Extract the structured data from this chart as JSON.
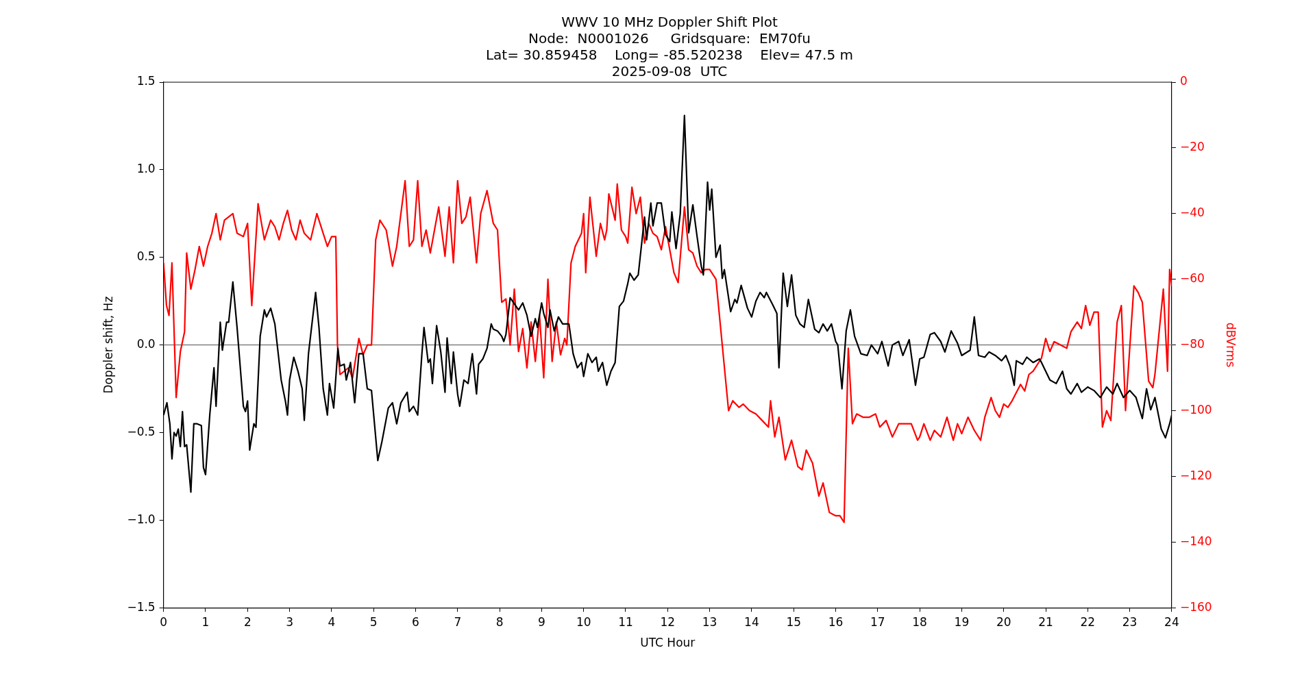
{
  "chart_data": {
    "type": "line",
    "title": "WWV 10 MHz Doppler Shift Plot\nNode:  N0001026     Gridsquare:  EM70fu\nLat= 30.859458    Long= -85.520238    Elev= 47.5 m\n2025-09-08  UTC",
    "xlabel": "UTC Hour",
    "ylabel": "Doppler shift, Hz",
    "y2label": "dBVrms",
    "xlim": [
      0,
      24
    ],
    "xticks": [
      0,
      1,
      2,
      3,
      4,
      5,
      6,
      7,
      8,
      9,
      10,
      11,
      12,
      13,
      14,
      15,
      16,
      17,
      18,
      19,
      20,
      21,
      22,
      23,
      24
    ],
    "ylim": [
      -1.5,
      1.5
    ],
    "yticks": [
      {
        "value": -1.5,
        "label": "−1.5"
      },
      {
        "value": -1,
        "label": "−1.0"
      },
      {
        "value": -0.5,
        "label": "−0.5"
      },
      {
        "value": 0,
        "label": "0.0"
      },
      {
        "value": 0.5,
        "label": "0.5"
      },
      {
        "value": 1,
        "label": "1.0"
      },
      {
        "value": 1.5,
        "label": "1.5"
      }
    ],
    "y2lim": [
      -160,
      0
    ],
    "y2ticks": [
      {
        "value": -160,
        "label": "−160"
      },
      {
        "value": -140,
        "label": "−140"
      },
      {
        "value": -120,
        "label": "−120"
      },
      {
        "value": -100,
        "label": "−100"
      },
      {
        "value": -80,
        "label": "−80"
      },
      {
        "value": -60,
        "label": "−60"
      },
      {
        "value": -40,
        "label": "−40"
      },
      {
        "value": -20,
        "label": "−20"
      },
      0
    ],
    "grid": false,
    "legend": false,
    "marker": "none",
    "line_style": "solid",
    "ref_lines": [
      {
        "axis": "y",
        "value": 0,
        "color": "#808080"
      }
    ],
    "series": [
      {
        "color": "#000000",
        "x": [
          0,
          0.08,
          0.15,
          0.2,
          0.25,
          0.3,
          0.35,
          0.4,
          0.45,
          0.5,
          0.55,
          0.65,
          0.72,
          0.8,
          0.9,
          0.95,
          1,
          1.1,
          1.2,
          1.25,
          1.35,
          1.4,
          1.5,
          1.55,
          1.65,
          1.75,
          1.9,
          1.95,
          2,
          2.05,
          2.15,
          2.2,
          2.3,
          2.4,
          2.45,
          2.55,
          2.65,
          2.8,
          2.9,
          2.95,
          3,
          3.1,
          3.2,
          3.3,
          3.35,
          3.45,
          3.62,
          3.7,
          3.8,
          3.9,
          3.95,
          4.05,
          4.15,
          4.2,
          4.3,
          4.35,
          4.45,
          4.55,
          4.65,
          4.75,
          4.85,
          4.95,
          5.1,
          5.2,
          5.35,
          5.45,
          5.55,
          5.65,
          5.8,
          5.85,
          5.95,
          6.05,
          6.15,
          6.2,
          6.3,
          6.35,
          6.4,
          6.5,
          6.6,
          6.7,
          6.75,
          6.85,
          6.9,
          7,
          7.05,
          7.15,
          7.25,
          7.35,
          7.45,
          7.5,
          7.6,
          7.7,
          7.8,
          7.85,
          7.95,
          8.05,
          8.1,
          8.15,
          8.25,
          8.45,
          8.55,
          8.65,
          8.75,
          8.85,
          8.9,
          9,
          9.05,
          9.15,
          9.2,
          9.3,
          9.4,
          9.5,
          9.65,
          9.75,
          9.85,
          9.95,
          10,
          10.1,
          10.2,
          10.3,
          10.35,
          10.45,
          10.55,
          10.65,
          10.75,
          10.85,
          10.95,
          11.05,
          11.1,
          11.2,
          11.3,
          11.45,
          11.5,
          11.6,
          11.65,
          11.75,
          11.85,
          11.95,
          12.05,
          12.1,
          12.2,
          12.3,
          12.4,
          12.5,
          12.6,
          12.7,
          12.8,
          12.85,
          12.95,
          13,
          13.05,
          13.15,
          13.25,
          13.3,
          13.35,
          13.5,
          13.6,
          13.65,
          13.75,
          13.9,
          14,
          14.1,
          14.2,
          14.3,
          14.35,
          14.5,
          14.6,
          14.65,
          14.75,
          14.85,
          14.95,
          15.05,
          15.15,
          15.25,
          15.35,
          15.5,
          15.6,
          15.7,
          15.8,
          15.9,
          16,
          16.05,
          16.15,
          16.25,
          16.35,
          16.45,
          16.6,
          16.75,
          16.85,
          17,
          17.1,
          17.25,
          17.35,
          17.5,
          17.6,
          17.75,
          17.9,
          18,
          18.1,
          18.25,
          18.35,
          18.5,
          18.6,
          18.75,
          18.9,
          19,
          19.2,
          19.3,
          19.4,
          19.55,
          19.65,
          19.8,
          19.95,
          20.05,
          20.15,
          20.25,
          20.3,
          20.45,
          20.55,
          20.7,
          20.85,
          20.9,
          21,
          21.1,
          21.25,
          21.4,
          21.5,
          21.6,
          21.75,
          21.85,
          22,
          22.15,
          22.3,
          22.45,
          22.6,
          22.7,
          22.85,
          23,
          23.15,
          23.3,
          23.4,
          23.5,
          23.6,
          23.75,
          23.85,
          23.95,
          24
        ],
        "values": [
          -0.4,
          -0.33,
          -0.45,
          -0.65,
          -0.5,
          -0.52,
          -0.48,
          -0.58,
          -0.38,
          -0.58,
          -0.57,
          -0.84,
          -0.45,
          -0.45,
          -0.46,
          -0.7,
          -0.74,
          -0.4,
          -0.13,
          -0.35,
          0.13,
          -0.03,
          0.13,
          0.13,
          0.36,
          0.1,
          -0.35,
          -0.38,
          -0.32,
          -0.6,
          -0.45,
          -0.47,
          0.05,
          0.2,
          0.16,
          0.21,
          0.12,
          -0.2,
          -0.32,
          -0.4,
          -0.2,
          -0.07,
          -0.15,
          -0.25,
          -0.43,
          -0.05,
          0.3,
          0.1,
          -0.25,
          -0.4,
          -0.22,
          -0.36,
          -0.02,
          -0.12,
          -0.11,
          -0.2,
          -0.1,
          -0.33,
          -0.05,
          -0.05,
          -0.25,
          -0.26,
          -0.66,
          -0.55,
          -0.36,
          -0.33,
          -0.45,
          -0.33,
          -0.27,
          -0.38,
          -0.35,
          -0.4,
          -0.05,
          0.1,
          -0.1,
          -0.08,
          -0.22,
          0.11,
          -0.04,
          -0.27,
          0.04,
          -0.22,
          -0.04,
          -0.28,
          -0.35,
          -0.2,
          -0.22,
          -0.05,
          -0.28,
          -0.11,
          -0.08,
          -0.02,
          0.12,
          0.09,
          0.08,
          0.05,
          0.02,
          0.06,
          0.27,
          0.2,
          0.24,
          0.17,
          0.05,
          0.15,
          0.1,
          0.24,
          0.18,
          0.1,
          0.2,
          0.08,
          0.16,
          0.12,
          0.12,
          -0.05,
          -0.13,
          -0.1,
          -0.18,
          -0.05,
          -0.1,
          -0.07,
          -0.15,
          -0.1,
          -0.23,
          -0.15,
          -0.1,
          0.22,
          0.25,
          0.35,
          0.41,
          0.37,
          0.4,
          0.73,
          0.6,
          0.81,
          0.68,
          0.81,
          0.81,
          0.63,
          0.59,
          0.76,
          0.55,
          0.75,
          1.31,
          0.64,
          0.8,
          0.62,
          0.45,
          0.4,
          0.93,
          0.77,
          0.89,
          0.5,
          0.57,
          0.38,
          0.43,
          0.19,
          0.26,
          0.24,
          0.34,
          0.21,
          0.16,
          0.25,
          0.3,
          0.27,
          0.3,
          0.23,
          0.18,
          -0.13,
          0.41,
          0.22,
          0.4,
          0.17,
          0.12,
          0.1,
          0.26,
          0.09,
          0.07,
          0.12,
          0.08,
          0.12,
          0.02,
          0,
          -0.25,
          0.08,
          0.2,
          0.05,
          -0.05,
          -0.06,
          0,
          -0.05,
          0.02,
          -0.12,
          0,
          0.02,
          -0.06,
          0.03,
          -0.23,
          -0.08,
          -0.07,
          0.06,
          0.07,
          0.02,
          -0.04,
          0.08,
          0.01,
          -0.06,
          -0.03,
          0.16,
          -0.06,
          -0.07,
          -0.04,
          -0.06,
          -0.09,
          -0.06,
          -0.12,
          -0.23,
          -0.09,
          -0.11,
          -0.07,
          -0.1,
          -0.08,
          -0.1,
          -0.15,
          -0.2,
          -0.22,
          -0.15,
          -0.25,
          -0.28,
          -0.22,
          -0.27,
          -0.24,
          -0.26,
          -0.3,
          -0.24,
          -0.28,
          -0.22,
          -0.3,
          -0.26,
          -0.3,
          -0.42,
          -0.25,
          -0.37,
          -0.3,
          -0.48,
          -0.53,
          -0.45,
          -0.4
        ]
      },
      {
        "color": "#ff0000",
        "axis": "y2",
        "x": [
          0,
          0.07,
          0.13,
          0.2,
          0.3,
          0.4,
          0.5,
          0.55,
          0.65,
          0.75,
          0.85,
          0.95,
          1.05,
          1.15,
          1.25,
          1.35,
          1.45,
          1.55,
          1.65,
          1.75,
          1.9,
          2,
          2.1,
          2.25,
          2.4,
          2.55,
          2.65,
          2.75,
          2.85,
          2.95,
          3.05,
          3.15,
          3.25,
          3.35,
          3.5,
          3.65,
          3.8,
          3.9,
          4,
          4.1,
          4.14,
          4.2,
          4.4,
          4.5,
          4.65,
          4.75,
          4.85,
          4.95,
          5.05,
          5.15,
          5.3,
          5.45,
          5.55,
          5.75,
          5.85,
          5.95,
          6.05,
          6.15,
          6.25,
          6.35,
          6.45,
          6.55,
          6.7,
          6.8,
          6.9,
          7,
          7.1,
          7.2,
          7.3,
          7.45,
          7.55,
          7.7,
          7.85,
          7.95,
          8.05,
          8.15,
          8.25,
          8.35,
          8.45,
          8.55,
          8.65,
          8.75,
          8.85,
          8.95,
          9.05,
          9.15,
          9.25,
          9.35,
          9.45,
          9.55,
          9.6,
          9.7,
          9.8,
          9.95,
          10,
          10.05,
          10.15,
          10.3,
          10.4,
          10.5,
          10.55,
          10.6,
          10.75,
          10.8,
          10.9,
          11,
          11.05,
          11.15,
          11.25,
          11.35,
          11.45,
          11.55,
          11.65,
          11.75,
          11.85,
          11.95,
          12.05,
          12.15,
          12.25,
          12.4,
          12.5,
          12.6,
          12.7,
          12.8,
          12.9,
          13,
          13.15,
          13.3,
          13.45,
          13.55,
          13.7,
          13.8,
          13.95,
          14.1,
          14.25,
          14.4,
          14.45,
          14.55,
          14.65,
          14.8,
          14.95,
          15.1,
          15.2,
          15.3,
          15.45,
          15.6,
          15.7,
          15.85,
          16,
          16.1,
          16.2,
          16.3,
          16.4,
          16.5,
          16.65,
          16.8,
          16.95,
          17.05,
          17.2,
          17.35,
          17.5,
          17.65,
          17.8,
          17.95,
          18,
          18.1,
          18.25,
          18.35,
          18.5,
          18.65,
          18.8,
          18.9,
          19,
          19.15,
          19.3,
          19.45,
          19.55,
          19.7,
          19.8,
          19.9,
          20,
          20.1,
          20.2,
          20.4,
          20.5,
          20.6,
          20.7,
          20.9,
          21,
          21.1,
          21.2,
          21.35,
          21.5,
          21.6,
          21.75,
          21.85,
          21.95,
          22.05,
          22.15,
          22.25,
          22.35,
          22.45,
          22.55,
          22.7,
          22.8,
          22.9,
          23.1,
          23.2,
          23.3,
          23.45,
          23.55,
          23.6,
          23.8,
          23.9,
          23.95,
          24
        ],
        "values": [
          -55,
          -68,
          -71,
          -55,
          -96,
          -82,
          -76,
          -52,
          -63,
          -57,
          -50,
          -56,
          -50,
          -46,
          -40,
          -48,
          -42,
          -41,
          -40,
          -46,
          -47,
          -43,
          -68,
          -37,
          -48,
          -42,
          -44,
          -48,
          -43,
          -39,
          -45,
          -48,
          -42,
          -46,
          -48,
          -40,
          -46,
          -50,
          -47,
          -47,
          -80,
          -89,
          -87,
          -90,
          -78,
          -83,
          -80,
          -80,
          -48,
          -42,
          -45,
          -56,
          -50,
          -30,
          -50,
          -48,
          -30,
          -50,
          -45,
          -52,
          -45,
          -38,
          -53,
          -38,
          -55,
          -30,
          -43,
          -41,
          -35,
          -55,
          -40,
          -33,
          -43,
          -45,
          -67,
          -66,
          -80,
          -63,
          -82,
          -75,
          -87,
          -73,
          -85,
          -71,
          -90,
          -60,
          -85,
          -73,
          -83,
          -78,
          -80,
          -55,
          -50,
          -46,
          -40,
          -58,
          -35,
          -53,
          -43,
          -48,
          -45,
          -34,
          -42,
          -31,
          -45,
          -47,
          -49,
          -32,
          -40,
          -35,
          -49,
          -43,
          -46,
          -47,
          -51,
          -44,
          -51,
          -58,
          -61,
          -38,
          -51,
          -52,
          -56,
          -58,
          -57,
          -57,
          -60,
          -80,
          -100,
          -97,
          -99,
          -98,
          -100,
          -101,
          -103,
          -105,
          -97,
          -108,
          -102,
          -115,
          -109,
          -117,
          -118,
          -112,
          -116,
          -126,
          -122,
          -131,
          -132,
          -132,
          -134,
          -81,
          -104,
          -101,
          -102,
          -102,
          -101,
          -105,
          -103,
          -108,
          -104,
          -104,
          -104,
          -109,
          -108,
          -104,
          -109,
          -106,
          -108,
          -102,
          -109,
          -104,
          -107,
          -102,
          -106,
          -109,
          -102,
          -96,
          -100,
          -102,
          -98,
          -99,
          -97,
          -92,
          -94,
          -89,
          -88,
          -84,
          -78,
          -82,
          -79,
          -80,
          -81,
          -76,
          -73,
          -75,
          -68,
          -74,
          -70,
          -70,
          -105,
          -100,
          -103,
          -73,
          -68,
          -100,
          -62,
          -64,
          -67,
          -91,
          -93,
          -89,
          -63,
          -88,
          -57,
          -62
        ]
      }
    ]
  }
}
